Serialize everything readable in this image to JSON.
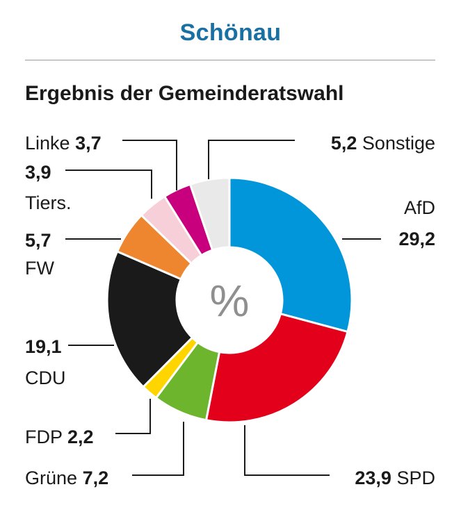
{
  "header": {
    "title": "Schönau",
    "subtitle": "Ergebnis der Gemeinderatswahl"
  },
  "chart_data": {
    "type": "pie",
    "style": "donut",
    "center_label": "%",
    "unit": "%",
    "decimal_separator": ",",
    "slices": [
      {
        "name": "AfD",
        "value": 29.2,
        "color": "#0096d9"
      },
      {
        "name": "SPD",
        "value": 23.9,
        "color": "#e2001a"
      },
      {
        "name": "Grüne",
        "value": 7.2,
        "color": "#6cb52d"
      },
      {
        "name": "FDP",
        "value": 2.2,
        "color": "#ffd500"
      },
      {
        "name": "CDU",
        "value": 19.1,
        "color": "#1a1a1a"
      },
      {
        "name": "FW",
        "value": 5.7,
        "color": "#ee8630"
      },
      {
        "name": "Tiers.",
        "value": 3.9,
        "color": "#f7cfd8"
      },
      {
        "name": "Linke",
        "value": 3.7,
        "color": "#c8007d"
      },
      {
        "name": "Sonstige",
        "value": 5.2,
        "color": "#e9e9e9"
      }
    ]
  }
}
